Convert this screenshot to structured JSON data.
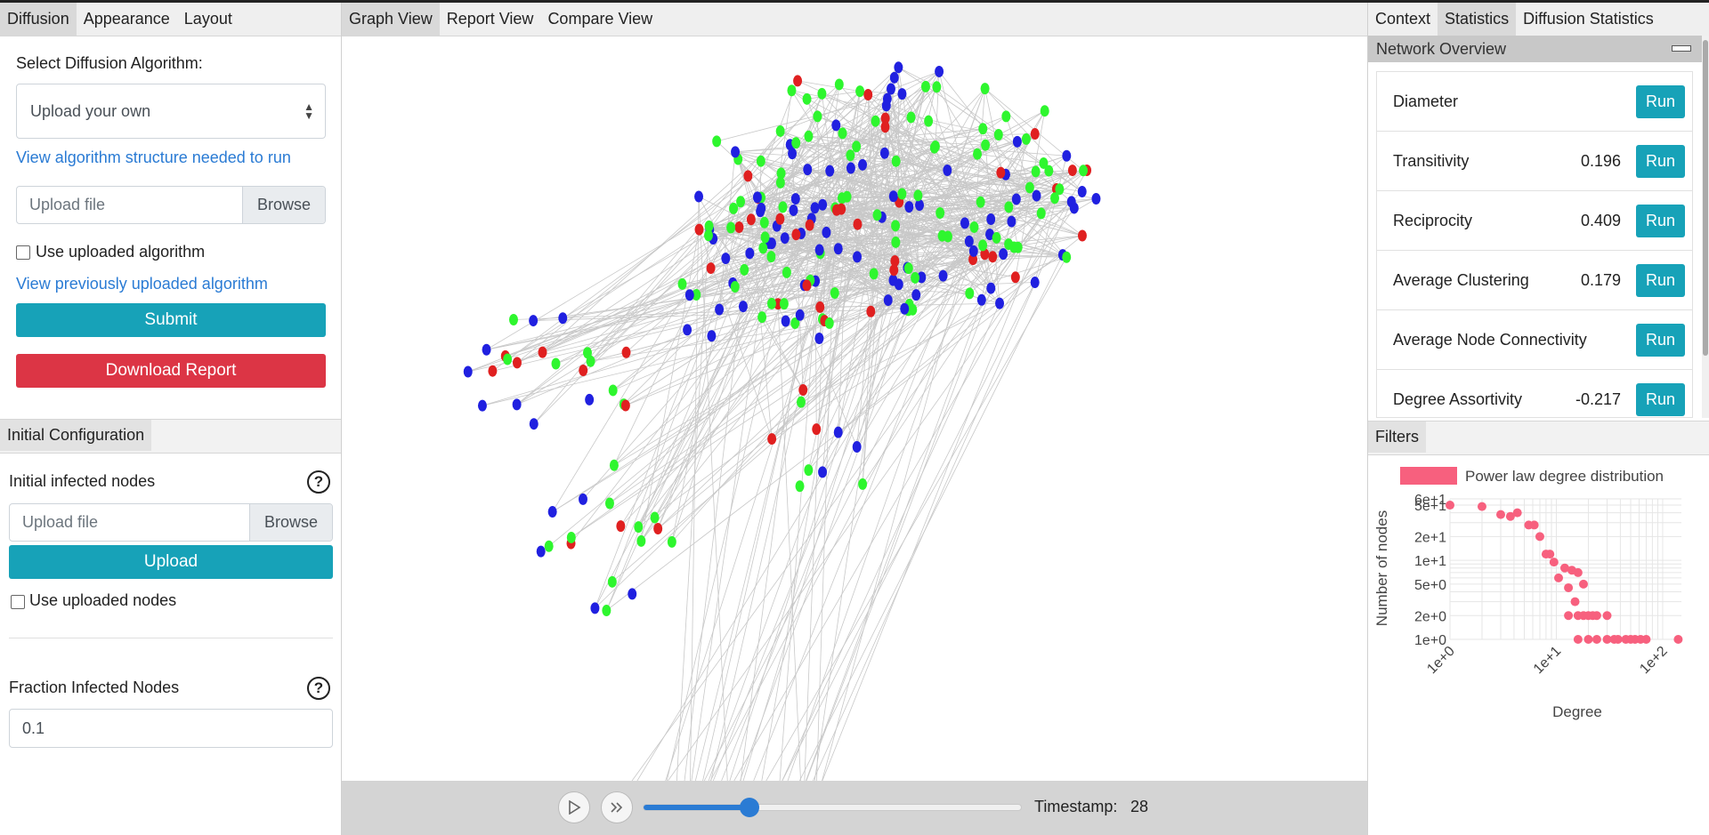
{
  "left": {
    "tabs": [
      "Diffusion",
      "Appearance",
      "Layout"
    ],
    "select_algorithm_label": "Select Diffusion Algorithm:",
    "algorithm_selected": "Upload your own",
    "view_structure_link": "View algorithm structure needed to run",
    "algo_file_placeholder": "Upload file",
    "browse_label": "Browse",
    "use_uploaded_algorithm_label": "Use uploaded algorithm",
    "view_previous_link": "View previously uploaded algorithm",
    "submit_label": "Submit",
    "download_report_label": "Download Report",
    "initial_config_tab": "Initial Configuration",
    "initial_infected_label": "Initial infected nodes",
    "help_glyph": "?",
    "nodes_file_placeholder": "Upload file",
    "upload_label": "Upload",
    "use_uploaded_nodes_label": "Use uploaded nodes",
    "fraction_label": "Fraction Infected Nodes",
    "fraction_value": "0.1"
  },
  "middle": {
    "tabs": [
      "Graph View",
      "Report View",
      "Compare View"
    ],
    "timestamp_label": "Timestamp:",
    "timestamp_value": "28",
    "slider_fraction": 0.28,
    "node_colors": {
      "susceptible": "#2ef62e",
      "infected": "#2020e0",
      "removed": "#e02020"
    },
    "edge_color": "#c8c8c8"
  },
  "right": {
    "tabs": [
      "Context",
      "Statistics",
      "Diffusion Statistics"
    ],
    "overview_title": "Network Overview",
    "run_label": "Run",
    "stats": [
      {
        "name": "Diameter",
        "value": ""
      },
      {
        "name": "Transitivity",
        "value": "0.196"
      },
      {
        "name": "Reciprocity",
        "value": "0.409"
      },
      {
        "name": "Average Clustering",
        "value": "0.179"
      },
      {
        "name": "Average Node Connectivity",
        "value": ""
      },
      {
        "name": "Degree Assortivity",
        "value": "-0.217"
      }
    ],
    "filters_tab": "Filters"
  },
  "chart_data": {
    "type": "scatter",
    "title": "",
    "legend": "Power law degree distribution",
    "legend_position": "top",
    "xlabel": "Degree",
    "ylabel": "Number of nodes",
    "x_scale": "log",
    "y_scale": "log",
    "xlim": [
      1,
      150
    ],
    "ylim": [
      1,
      60
    ],
    "x_ticks": [
      {
        "v": 1,
        "label": "1e+0"
      },
      {
        "v": 10,
        "label": "1e+1"
      },
      {
        "v": 100,
        "label": "1e+2"
      }
    ],
    "y_ticks": [
      {
        "v": 1,
        "label": "1e+0"
      },
      {
        "v": 2,
        "label": "2e+0"
      },
      {
        "v": 5,
        "label": "5e+0"
      },
      {
        "v": 10,
        "label": "1e+1"
      },
      {
        "v": 20,
        "label": "2e+1"
      },
      {
        "v": 50,
        "label": "5e+1"
      },
      {
        "v": 60,
        "label": "6e+1"
      }
    ],
    "color": "#f7607e",
    "points": [
      [
        1,
        50
      ],
      [
        2,
        48
      ],
      [
        3,
        38
      ],
      [
        3.7,
        36
      ],
      [
        4.3,
        40
      ],
      [
        5.5,
        28
      ],
      [
        6.2,
        28
      ],
      [
        7,
        20
      ],
      [
        8,
        12
      ],
      [
        8.7,
        12
      ],
      [
        9.5,
        9.5
      ],
      [
        10.5,
        6
      ],
      [
        12,
        8
      ],
      [
        13,
        4.5
      ],
      [
        14,
        7.5
      ],
      [
        15,
        3
      ],
      [
        16,
        7
      ],
      [
        18,
        5
      ],
      [
        13,
        2
      ],
      [
        16,
        2
      ],
      [
        18,
        2
      ],
      [
        20,
        2
      ],
      [
        22,
        2
      ],
      [
        24,
        2
      ],
      [
        30,
        2
      ],
      [
        16,
        1
      ],
      [
        20,
        1
      ],
      [
        24,
        1
      ],
      [
        30,
        1
      ],
      [
        35,
        1
      ],
      [
        38,
        1
      ],
      [
        45,
        1
      ],
      [
        50,
        1
      ],
      [
        55,
        1
      ],
      [
        62,
        1
      ],
      [
        70,
        1
      ],
      [
        140,
        1
      ]
    ]
  }
}
